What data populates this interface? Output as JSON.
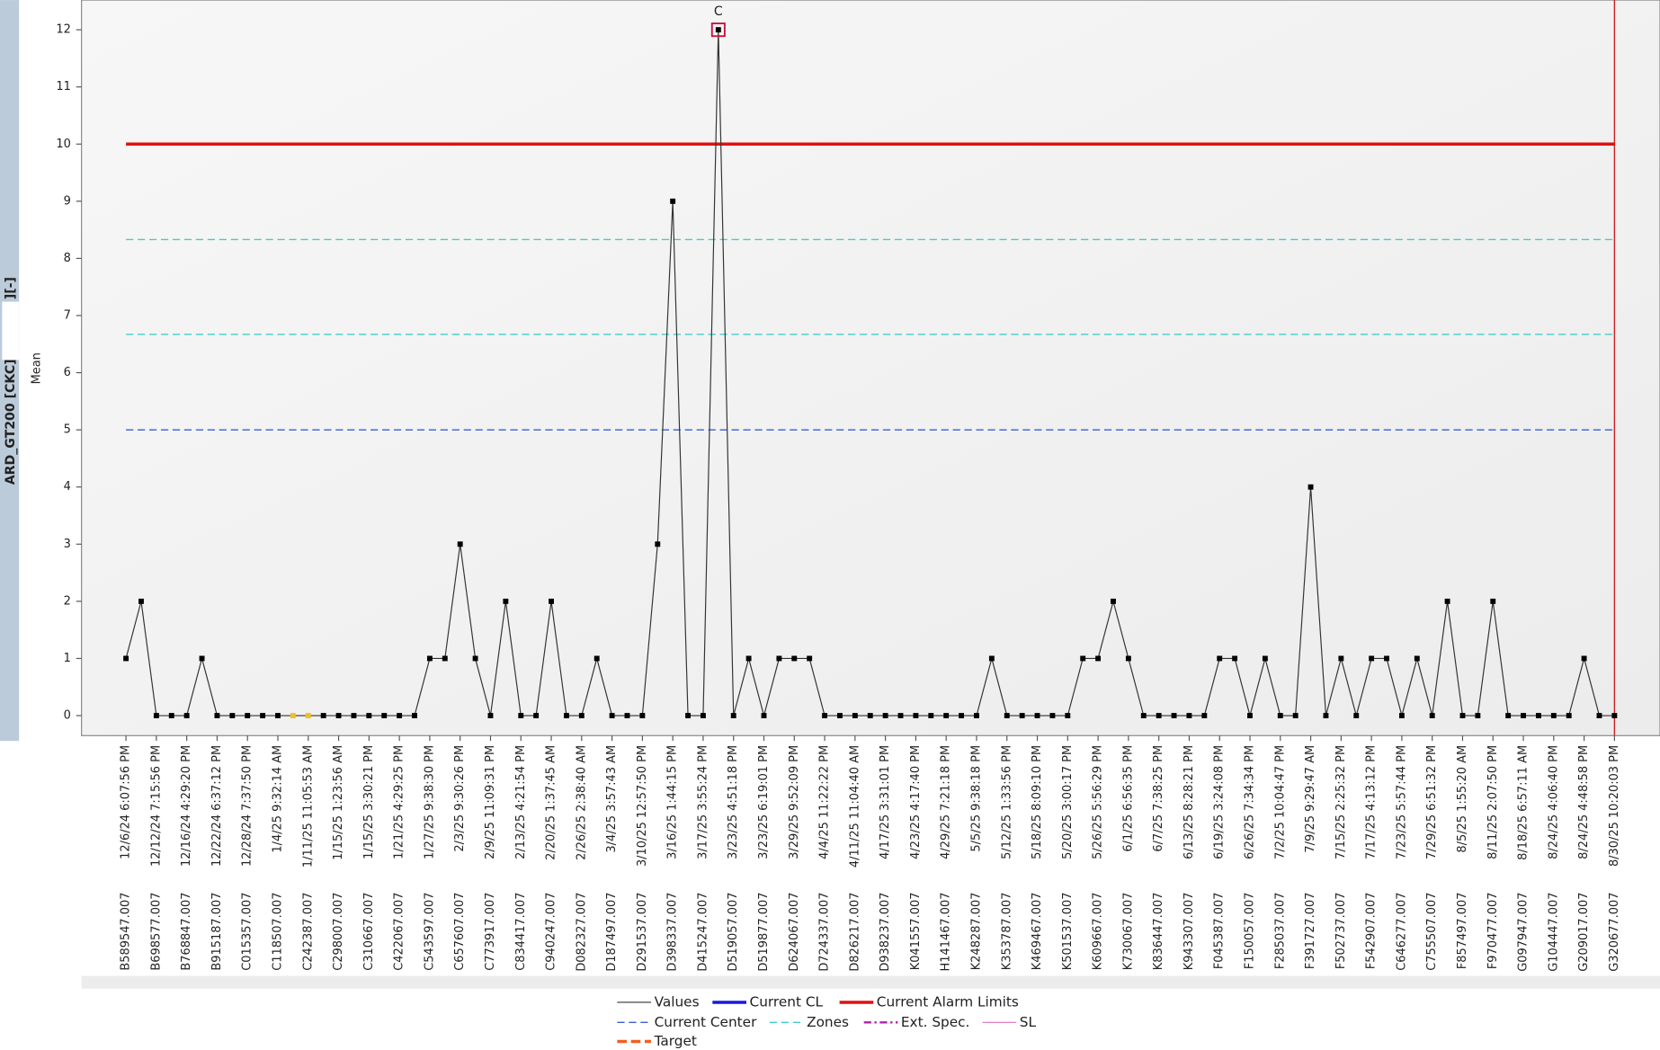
{
  "chart_data": {
    "type": "line",
    "y_label": "Mean",
    "side_label": "ARD_GT200 [CKC][",
    "side_label_suffix": "][-]",
    "categories": [
      "12/6/24 6:07:56 PM",
      null,
      "12/12/24 7:15:56 PM",
      null,
      "12/16/24 4:29:20 PM",
      null,
      "12/22/24 6:37:12 PM",
      null,
      "12/28/24 7:37:50 PM",
      null,
      "1/4/25 9:32:14 AM",
      null,
      "1/11/25 11:05:53 AM",
      null,
      "1/15/25 1:23:56 AM",
      null,
      "1/15/25 3:30:21 PM",
      null,
      "1/21/25 4:29:25 PM",
      null,
      "1/27/25 9:38:30 PM",
      null,
      "2/3/25 9:30:26 PM",
      null,
      "2/9/25 11:09:31 PM",
      null,
      "2/13/25 4:21:54 PM",
      null,
      "2/20/25 1:37:45 AM",
      null,
      "2/26/25 2:38:40 AM",
      null,
      "3/4/25 3:57:43 AM",
      null,
      "3/10/25 12:57:50 PM",
      null,
      "3/16/25 1:44:15 PM",
      null,
      "3/17/25 3:55:24 PM",
      null,
      "3/23/25 4:51:18 PM",
      null,
      "3/23/25 6:19:01 PM",
      null,
      "3/29/25 9:52:09 PM",
      null,
      "4/4/25 11:22:22 PM",
      null,
      "4/11/25 11:04:40 AM",
      null,
      "4/17/25 3:31:01 PM",
      null,
      "4/23/25 4:17:40 PM",
      null,
      "4/29/25 7:21:18 PM",
      null,
      "5/5/25 9:38:18 PM",
      null,
      "5/12/25 1:33:56 PM",
      null,
      "5/18/25 8:09:10 PM",
      null,
      "5/20/25 3:00:17 PM",
      null,
      "5/26/25 5:56:29 PM",
      null,
      "6/1/25 6:56:35 PM",
      null,
      "6/7/25 7:38:25 PM",
      null,
      "6/13/25 8:28:21 PM",
      null,
      "6/19/25 3:24:08 PM",
      null,
      "6/26/25 7:34:34 PM",
      null,
      "7/2/25 10:04:47 PM",
      null,
      "7/9/25 9:29:47 AM",
      null,
      "7/15/25 2:25:32 PM",
      null,
      "7/17/25 4:13:12 PM",
      null,
      "7/23/25 5:57:44 PM",
      null,
      "7/29/25 6:51:32 PM",
      null,
      "8/5/25 1:55:20 AM",
      null,
      "8/11/25 2:07:50 PM",
      null,
      "8/18/25 6:57:11 AM",
      null,
      "8/24/25 4:06:40 PM",
      null,
      "8/24/25 4:48:58 PM",
      null,
      "8/30/25 10:20:03 PM"
    ],
    "batch_ids": [
      "B589547.007",
      null,
      "B698577.007",
      null,
      "B768847.007",
      null,
      "B915187.007",
      null,
      "C015357.007",
      null,
      "C118507.007",
      null,
      "C242387.007",
      null,
      "C298007.007",
      null,
      "C310667.007",
      null,
      "C422067.007",
      null,
      "C543597.007",
      null,
      "C657607.007",
      null,
      "C773917.007",
      null,
      "C834417.007",
      null,
      "C940247.007",
      null,
      "D082327.007",
      null,
      "D187497.007",
      null,
      "D291537.007",
      null,
      "D398337.007",
      null,
      "D415247.007",
      null,
      "D519057.007",
      null,
      "D519877.007",
      null,
      "D624067.007",
      null,
      "D724337.007",
      null,
      "D826217.007",
      null,
      "D938237.007",
      null,
      "K041557.007",
      null,
      "H141467.007",
      null,
      "K248287.007",
      null,
      "K353787.007",
      null,
      "K469467.007",
      null,
      "K501537.007",
      null,
      "K609667.007",
      null,
      "K730067.007",
      null,
      "K836447.007",
      null,
      "K943307.007",
      null,
      "F045387.007",
      null,
      "F150057.007",
      null,
      "F285037.007",
      null,
      "F391727.007",
      null,
      "F502737.007",
      null,
      "F542907.007",
      null,
      "C646277.007",
      null,
      "C755507.007",
      null,
      "F857497.007",
      null,
      "F970477.007",
      null,
      "G097947.007",
      null,
      "G104447.007",
      null,
      "G209017.007",
      null,
      "G320677.007"
    ],
    "series": [
      {
        "name": "Values",
        "color": "#333333",
        "values": [
          1,
          2,
          0,
          0,
          0,
          1,
          0,
          0,
          0,
          0,
          0,
          0,
          0,
          0,
          0,
          0,
          0,
          0,
          0,
          0,
          1,
          1,
          3,
          1,
          0,
          2,
          0,
          0,
          2,
          0,
          0,
          1,
          0,
          0,
          0,
          3,
          9,
          0,
          0,
          12,
          0,
          1,
          0,
          1,
          1,
          1,
          0,
          0,
          0,
          0,
          0,
          0,
          0,
          0,
          0,
          0,
          0,
          1,
          0,
          0,
          0,
          0,
          0,
          1,
          1,
          2,
          1,
          0,
          0,
          0,
          0,
          0,
          1,
          1,
          0,
          1,
          0,
          0,
          4,
          0,
          1,
          0,
          1,
          1,
          0,
          1,
          0,
          2,
          0,
          0,
          2,
          0,
          0,
          0,
          0,
          0,
          1,
          0,
          0
        ]
      }
    ],
    "warning_points": [
      11,
      12
    ],
    "annotation": {
      "index": 39,
      "text": "C"
    },
    "center": 5,
    "zones": [
      8.33,
      6.67
    ],
    "alarm_limit": 10,
    "ylim": [
      -0.35,
      12.52
    ],
    "yticks": [
      0,
      1,
      2,
      3,
      4,
      5,
      6,
      7,
      8,
      9,
      10,
      11,
      12
    ],
    "legend": [
      {
        "name": "Values",
        "color": "#333333",
        "style": "thin"
      },
      {
        "name": "Current CL",
        "color": "#1a1adc",
        "style": "thick"
      },
      {
        "name": "Current Alarm Limits",
        "color": "#e01010",
        "style": "thick"
      },
      {
        "name": "Current Center",
        "color": "#3a5fcd",
        "style": "dashed"
      },
      {
        "name": "Zones",
        "color": "#40d0c8",
        "style": "dashed"
      },
      {
        "name": "Ext. Spec.",
        "color": "#b020b0",
        "style": "dashdot"
      },
      {
        "name": "SL",
        "color": "#e070c0",
        "style": "thin"
      },
      {
        "name": "Target",
        "color": "#f06020",
        "style": "thickdash"
      }
    ]
  }
}
